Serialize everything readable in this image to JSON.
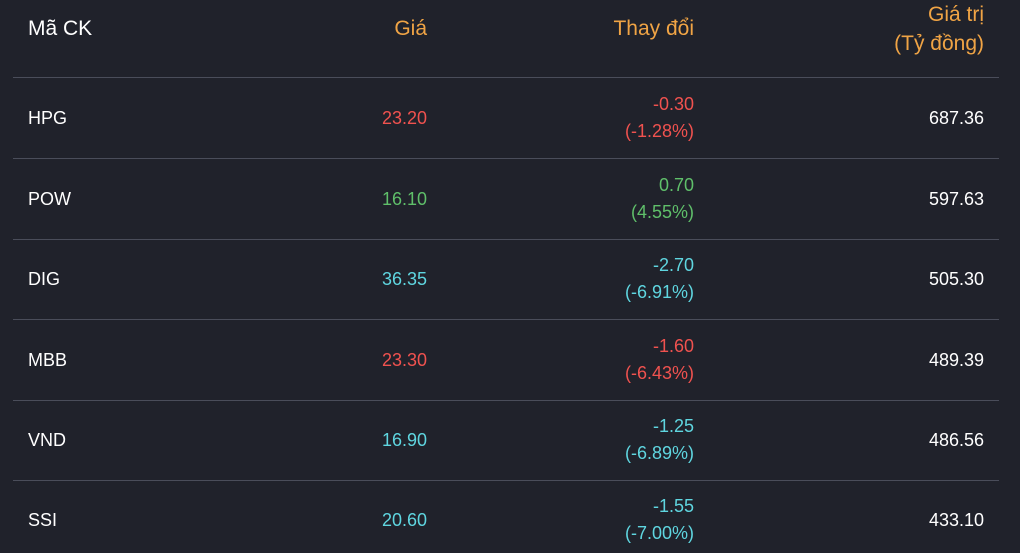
{
  "colors": {
    "background": "#20222b",
    "header_accent": "#f0a445",
    "text": "#ffffff",
    "divider": "#4a4d5a",
    "down": "#f0524f",
    "up": "#5fbf6a",
    "floor": "#5fd6e0"
  },
  "header": {
    "symbol": "Mã CK",
    "price": "Giá",
    "change": "Thay đổi",
    "value_line1": "Giá trị",
    "value_line2": "(Tỷ đồng)"
  },
  "rows": [
    {
      "symbol": "HPG",
      "price": "23.20",
      "change": "-0.30",
      "change_pct": "(-1.28%)",
      "value": "687.36",
      "color": "#f0524f"
    },
    {
      "symbol": "POW",
      "price": "16.10",
      "change": "0.70",
      "change_pct": "(4.55%)",
      "value": "597.63",
      "color": "#5fbf6a"
    },
    {
      "symbol": "DIG",
      "price": "36.35",
      "change": "-2.70",
      "change_pct": "(-6.91%)",
      "value": "505.30",
      "color": "#5fd6e0"
    },
    {
      "symbol": "MBB",
      "price": "23.30",
      "change": "-1.60",
      "change_pct": "(-6.43%)",
      "value": "489.39",
      "color": "#f0524f"
    },
    {
      "symbol": "VND",
      "price": "16.90",
      "change": "-1.25",
      "change_pct": "(-6.89%)",
      "value": "486.56",
      "color": "#5fd6e0"
    },
    {
      "symbol": "SSI",
      "price": "20.60",
      "change": "-1.55",
      "change_pct": "(-7.00%)",
      "value": "433.10",
      "color": "#5fd6e0"
    }
  ]
}
